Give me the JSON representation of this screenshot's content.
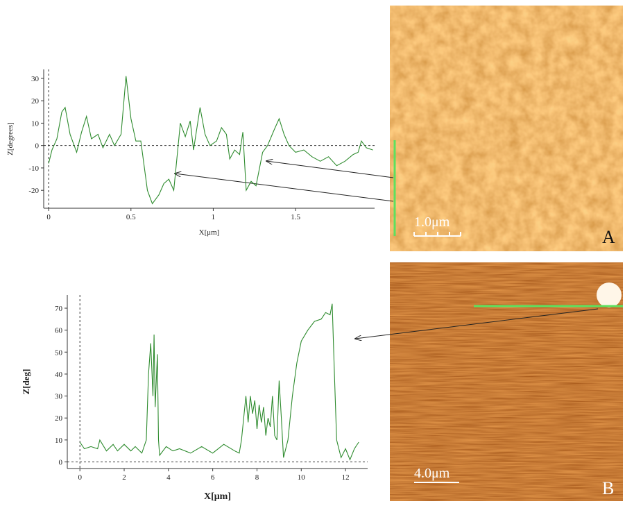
{
  "chart_data": [
    {
      "type": "line",
      "xlabel": "X[μm]",
      "ylabel": "Z[degrees]",
      "xlim": [
        -0.03,
        1.98
      ],
      "ylim": [
        -28,
        34
      ],
      "xticks": [
        0,
        0.5,
        1,
        1.5
      ],
      "yticks": [
        -20,
        -10,
        0,
        10,
        20,
        30
      ],
      "series": [
        {
          "color": "#2e8b2e",
          "x": [
            0,
            0.02,
            0.05,
            0.08,
            0.1,
            0.13,
            0.17,
            0.2,
            0.23,
            0.26,
            0.3,
            0.33,
            0.37,
            0.4,
            0.44,
            0.47,
            0.5,
            0.53,
            0.56,
            0.6,
            0.63,
            0.67,
            0.7,
            0.73,
            0.76,
            0.8,
            0.83,
            0.86,
            0.88,
            0.92,
            0.95,
            0.98,
            1.02,
            1.05,
            1.08,
            1.1,
            1.13,
            1.16,
            1.18,
            1.2,
            1.23,
            1.26,
            1.3,
            1.33,
            1.37,
            1.4,
            1.43,
            1.46,
            1.5,
            1.55,
            1.6,
            1.65,
            1.7,
            1.75,
            1.8,
            1.85,
            1.88,
            1.9,
            1.93,
            1.97
          ],
          "values": [
            -8,
            -2,
            3,
            15,
            17,
            5,
            -3,
            6,
            13,
            3,
            5,
            -1,
            5,
            0,
            5,
            31,
            12,
            2,
            2,
            -20,
            -26,
            -22,
            -17,
            -15,
            -20,
            10,
            4,
            11,
            -2,
            17,
            5,
            0,
            2,
            8,
            5,
            -6,
            -2,
            -4,
            6,
            -20,
            -16,
            -18,
            -3,
            0,
            7,
            12,
            5,
            0,
            -3,
            -2,
            -5,
            -7,
            -5,
            -9,
            -7,
            -4,
            -3,
            2,
            -1,
            -2
          ]
        }
      ]
    },
    {
      "type": "line",
      "xlabel": "X[μm]",
      "ylabel": "Z[deg]",
      "xlim": [
        -0.57,
        13
      ],
      "ylim": [
        -3,
        76
      ],
      "xticks": [
        0,
        2,
        4,
        6,
        8,
        10,
        12
      ],
      "yticks": [
        0,
        10,
        20,
        30,
        40,
        50,
        60,
        70
      ],
      "series": [
        {
          "color": "#2e8b2e",
          "x": [
            0,
            0.2,
            0.5,
            0.8,
            0.9,
            1.2,
            1.5,
            1.7,
            2,
            2.3,
            2.5,
            2.8,
            3.0,
            3.1,
            3.2,
            3.3,
            3.35,
            3.4,
            3.5,
            3.55,
            3.6,
            3.9,
            4.2,
            4.5,
            5,
            5.5,
            6,
            6.5,
            7,
            7.2,
            7.3,
            7.5,
            7.6,
            7.7,
            7.8,
            7.9,
            8,
            8.1,
            8.2,
            8.3,
            8.4,
            8.5,
            8.6,
            8.7,
            8.8,
            8.9,
            9.0,
            9.1,
            9.2,
            9.4,
            9.6,
            9.8,
            10,
            10.3,
            10.6,
            10.9,
            11.1,
            11.3,
            11.4,
            11.5,
            11.6,
            11.8,
            12,
            12.2,
            12.4,
            12.6
          ],
          "values": [
            9,
            6,
            7,
            6,
            10,
            5,
            8,
            5,
            8,
            5,
            7,
            4,
            10,
            40,
            54,
            30,
            58,
            25,
            49,
            10,
            3,
            7,
            5,
            6,
            4,
            7,
            4,
            8,
            5,
            4,
            10,
            30,
            18,
            30,
            22,
            28,
            15,
            26,
            18,
            25,
            12,
            20,
            16,
            30,
            12,
            10,
            37,
            20,
            2,
            10,
            30,
            45,
            55,
            60,
            64,
            65,
            68,
            67,
            72,
            40,
            10,
            2,
            6,
            1,
            6,
            9
          ]
        }
      ]
    }
  ],
  "panels": [
    {
      "scale_bar": "1.0μm",
      "label": "A"
    },
    {
      "scale_bar": "4.0μm",
      "label": "B"
    }
  ]
}
